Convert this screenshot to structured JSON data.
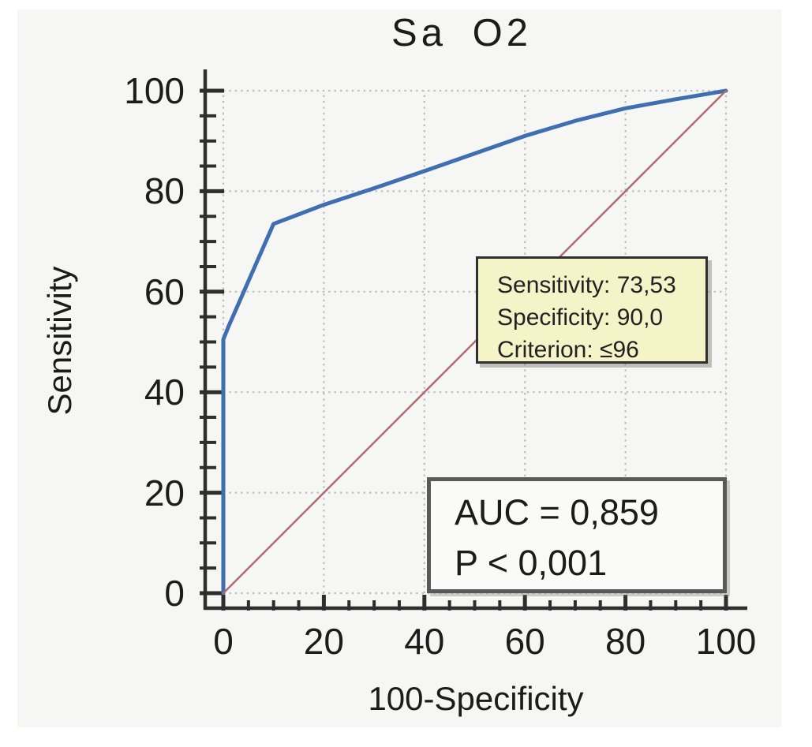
{
  "chart_data": {
    "type": "line",
    "subtype": "roc-curve",
    "title": "Sa O2",
    "xlabel": "100-Specificity",
    "ylabel": "Sensitivity",
    "xlim": [
      0,
      100
    ],
    "ylim": [
      0,
      100
    ],
    "x_major_ticks": [
      0,
      20,
      40,
      60,
      80,
      100
    ],
    "y_major_ticks": [
      0,
      20,
      40,
      60,
      80,
      100
    ],
    "minor_tick_step": 5,
    "grid": "dotted gridlines at major ticks, both axes",
    "legend_position": "none",
    "series": [
      {
        "name": "ROC curve",
        "color": "#3f6fb0",
        "width": 5,
        "points": [
          [
            0,
            0
          ],
          [
            0,
            50.5
          ],
          [
            1,
            53
          ],
          [
            10,
            73.5
          ],
          [
            20,
            77.3
          ],
          [
            30,
            80.6
          ],
          [
            40,
            84
          ],
          [
            50,
            87.5
          ],
          [
            60,
            91
          ],
          [
            70,
            94
          ],
          [
            80,
            96.5
          ],
          [
            90,
            98.3
          ],
          [
            100,
            100
          ]
        ]
      },
      {
        "name": "Reference diagonal",
        "color": "#b46a6a",
        "width": 2.5,
        "points": [
          [
            0,
            0
          ],
          [
            100,
            100
          ]
        ]
      }
    ],
    "operating_point": {
      "sensitivity": "73,53",
      "specificity": "90,0",
      "criterion": "≤96"
    },
    "auc": "0,859",
    "p_value": "< 0,001",
    "annotations": [
      {
        "id": "criterion-box",
        "fill": "#f5f3c8",
        "lines": [
          "Sensitivity: 73,53",
          "Specificity: 90,0",
          "Criterion: ≤96"
        ]
      },
      {
        "id": "auc-box",
        "fill": "#fafaf8",
        "lines": [
          "AUC = 0,859",
          "P < 0,001"
        ]
      }
    ],
    "colors": {
      "plot_background": "#f6f6f4",
      "axis": "#2e2e2e",
      "grid": "#bdbdbd",
      "roc_curve": "#3f6fb0",
      "reference_line": "#b46a6a",
      "criterion_box_fill": "#f5f3c8",
      "criterion_box_border": "#2f2f2f",
      "auc_box_fill": "#fafaf8",
      "auc_box_border": "#595959",
      "text": "#1b1b1b"
    }
  }
}
